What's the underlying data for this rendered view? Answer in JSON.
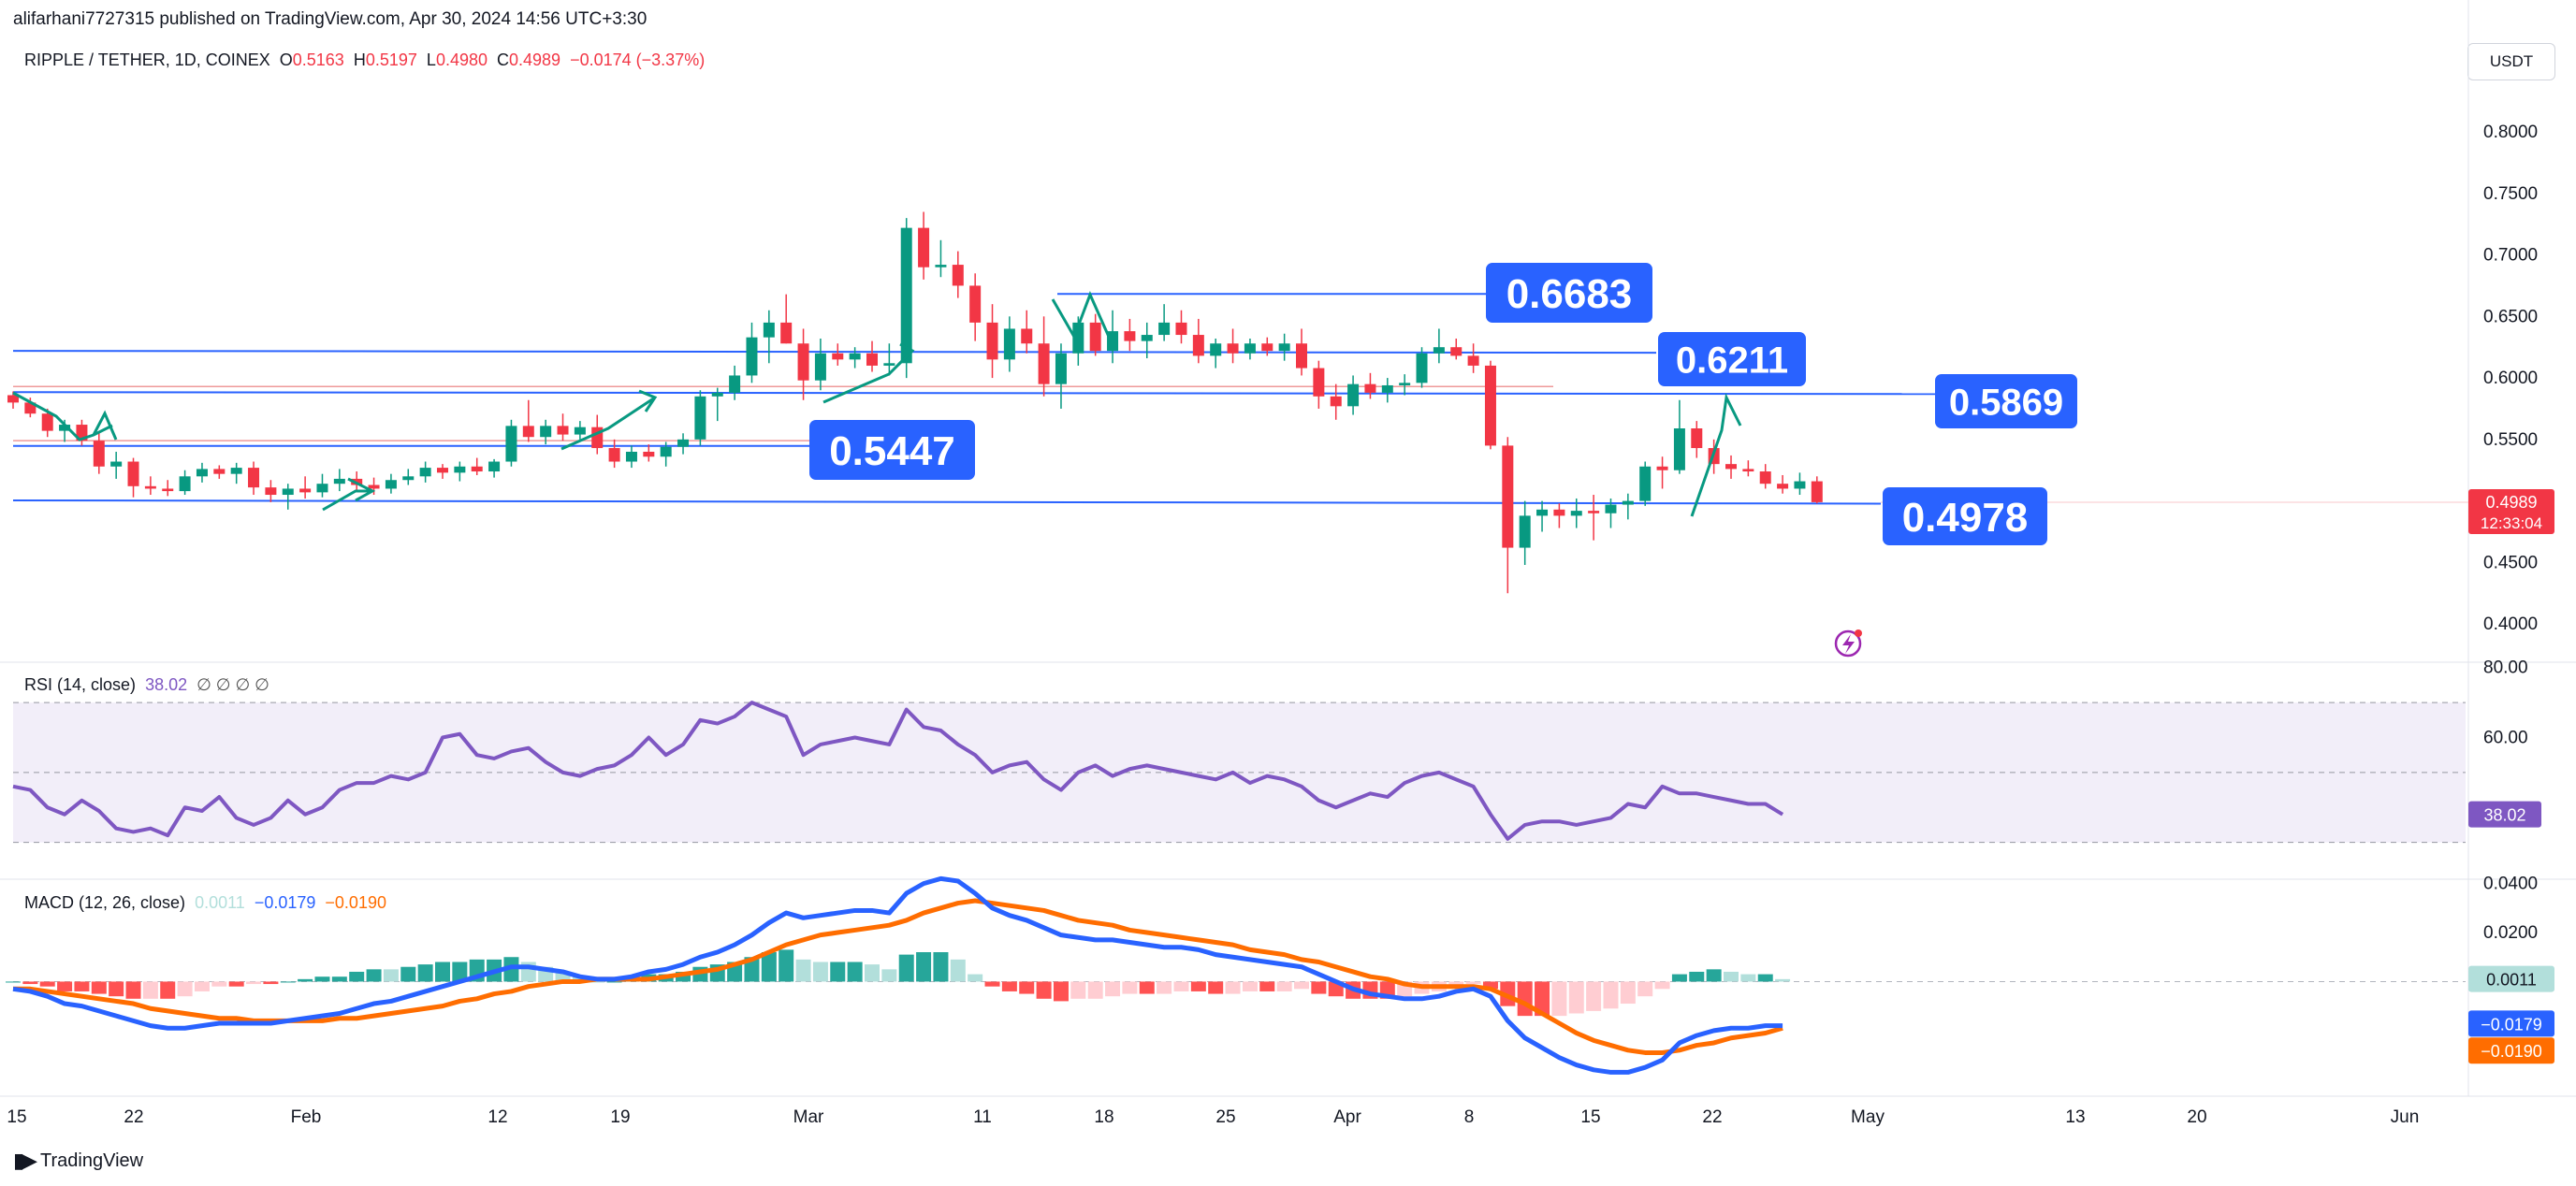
{
  "publisher": "alifarhani7727315 published on TradingView.com, Apr 30, 2024 14:56 UTC+3:30",
  "currency": "USDT",
  "footer": "TradingView",
  "legend": {
    "symbol": "RIPPLE / TETHER, 1D, COINEX",
    "o_label": "O",
    "o": "0.5163",
    "h_label": "H",
    "h": "0.5197",
    "l_label": "L",
    "l": "0.4980",
    "c_label": "C",
    "c": "0.4989",
    "change": "−0.0174 (−3.37%)"
  },
  "rsi_legend": {
    "label": "RSI (14, close)",
    "value": "38.02",
    "na": "∅ ∅ ∅ ∅"
  },
  "macd_legend": {
    "label": "MACD (12, 26, close)",
    "hist": "0.0011",
    "macd": "−0.0179",
    "signal": "−0.0190"
  },
  "colors": {
    "up": "#089981",
    "down": "#f23645",
    "line_blue": "#2962ff",
    "label_blue": "#2962ff",
    "rsi": "#7e57c2",
    "macd": "#2962ff",
    "signal": "#ff6d00"
  },
  "chart_data": {
    "type": "candlestick",
    "price_axis": {
      "ticks": [
        "0.8000",
        "0.7500",
        "0.7000",
        "0.6500",
        "0.6000",
        "0.5500",
        "0.5000",
        "0.4500",
        "0.4000"
      ],
      "range": [
        0.375,
        0.835
      ]
    },
    "x_ticks": [
      "15",
      "22",
      "Feb",
      "12",
      "19",
      "Mar",
      "11",
      "18",
      "25",
      "Apr",
      "8",
      "15",
      "22",
      "May",
      "13",
      "20",
      "Jun"
    ],
    "current_price": {
      "value": "0.4989",
      "countdown": "12:33:04"
    },
    "levels": [
      {
        "label": "0.6683",
        "value": 0.6683
      },
      {
        "label": "0.6211",
        "value": 0.6211
      },
      {
        "label": "0.5869",
        "value": 0.5869
      },
      {
        "label": "0.5447",
        "value": 0.5447
      },
      {
        "label": "0.4978",
        "value": 0.4978
      }
    ],
    "candles": [
      [
        0.586,
        0.589,
        0.575,
        0.58
      ],
      [
        0.58,
        0.584,
        0.568,
        0.571
      ],
      [
        0.571,
        0.575,
        0.552,
        0.557
      ],
      [
        0.557,
        0.566,
        0.548,
        0.562
      ],
      [
        0.562,
        0.566,
        0.545,
        0.549
      ],
      [
        0.549,
        0.556,
        0.522,
        0.528
      ],
      [
        0.528,
        0.54,
        0.518,
        0.532
      ],
      [
        0.532,
        0.535,
        0.503,
        0.512
      ],
      [
        0.512,
        0.52,
        0.505,
        0.51
      ],
      [
        0.51,
        0.517,
        0.504,
        0.508
      ],
      [
        0.508,
        0.525,
        0.505,
        0.52
      ],
      [
        0.52,
        0.531,
        0.515,
        0.526
      ],
      [
        0.526,
        0.529,
        0.518,
        0.522
      ],
      [
        0.522,
        0.531,
        0.514,
        0.527
      ],
      [
        0.527,
        0.532,
        0.505,
        0.511
      ],
      [
        0.511,
        0.517,
        0.499,
        0.505
      ],
      [
        0.505,
        0.514,
        0.493,
        0.51
      ],
      [
        0.51,
        0.52,
        0.502,
        0.507
      ],
      [
        0.507,
        0.522,
        0.503,
        0.514
      ],
      [
        0.514,
        0.526,
        0.508,
        0.518
      ],
      [
        0.518,
        0.524,
        0.509,
        0.513
      ],
      [
        0.513,
        0.519,
        0.505,
        0.51
      ],
      [
        0.51,
        0.522,
        0.506,
        0.517
      ],
      [
        0.517,
        0.526,
        0.513,
        0.52
      ],
      [
        0.52,
        0.532,
        0.515,
        0.527
      ],
      [
        0.527,
        0.53,
        0.518,
        0.523
      ],
      [
        0.523,
        0.532,
        0.516,
        0.528
      ],
      [
        0.528,
        0.535,
        0.521,
        0.524
      ],
      [
        0.524,
        0.534,
        0.519,
        0.532
      ],
      [
        0.532,
        0.566,
        0.528,
        0.561
      ],
      [
        0.561,
        0.582,
        0.548,
        0.552
      ],
      [
        0.552,
        0.566,
        0.546,
        0.561
      ],
      [
        0.561,
        0.571,
        0.549,
        0.554
      ],
      [
        0.554,
        0.565,
        0.55,
        0.56
      ],
      [
        0.56,
        0.57,
        0.538,
        0.543
      ],
      [
        0.543,
        0.55,
        0.527,
        0.532
      ],
      [
        0.532,
        0.545,
        0.527,
        0.54
      ],
      [
        0.54,
        0.546,
        0.532,
        0.536
      ],
      [
        0.536,
        0.548,
        0.528,
        0.544
      ],
      [
        0.544,
        0.555,
        0.538,
        0.55
      ],
      [
        0.55,
        0.59,
        0.545,
        0.585
      ],
      [
        0.585,
        0.592,
        0.565,
        0.588
      ],
      [
        0.588,
        0.61,
        0.582,
        0.602
      ],
      [
        0.602,
        0.645,
        0.596,
        0.633
      ],
      [
        0.633,
        0.655,
        0.612,
        0.645
      ],
      [
        0.645,
        0.668,
        0.628,
        0.628
      ],
      [
        0.628,
        0.64,
        0.582,
        0.598
      ],
      [
        0.598,
        0.632,
        0.59,
        0.62
      ],
      [
        0.62,
        0.628,
        0.61,
        0.615
      ],
      [
        0.615,
        0.625,
        0.608,
        0.62
      ],
      [
        0.62,
        0.63,
        0.605,
        0.61
      ],
      [
        0.61,
        0.628,
        0.602,
        0.612
      ],
      [
        0.612,
        0.73,
        0.6,
        0.722
      ],
      [
        0.722,
        0.735,
        0.68,
        0.69
      ],
      [
        0.69,
        0.712,
        0.682,
        0.692
      ],
      [
        0.692,
        0.703,
        0.665,
        0.675
      ],
      [
        0.675,
        0.685,
        0.63,
        0.645
      ],
      [
        0.645,
        0.66,
        0.6,
        0.615
      ],
      [
        0.615,
        0.65,
        0.605,
        0.64
      ],
      [
        0.64,
        0.655,
        0.62,
        0.628
      ],
      [
        0.628,
        0.65,
        0.585,
        0.595
      ],
      [
        0.595,
        0.628,
        0.575,
        0.62
      ],
      [
        0.62,
        0.65,
        0.61,
        0.645
      ],
      [
        0.645,
        0.652,
        0.618,
        0.622
      ],
      [
        0.622,
        0.655,
        0.612,
        0.638
      ],
      [
        0.638,
        0.648,
        0.622,
        0.63
      ],
      [
        0.63,
        0.645,
        0.616,
        0.635
      ],
      [
        0.635,
        0.66,
        0.63,
        0.645
      ],
      [
        0.645,
        0.655,
        0.628,
        0.635
      ],
      [
        0.635,
        0.648,
        0.612,
        0.618
      ],
      [
        0.618,
        0.632,
        0.608,
        0.628
      ],
      [
        0.628,
        0.64,
        0.612,
        0.62
      ],
      [
        0.62,
        0.632,
        0.615,
        0.628
      ],
      [
        0.628,
        0.633,
        0.618,
        0.622
      ],
      [
        0.622,
        0.636,
        0.614,
        0.628
      ],
      [
        0.628,
        0.64,
        0.602,
        0.608
      ],
      [
        0.608,
        0.614,
        0.575,
        0.585
      ],
      [
        0.585,
        0.595,
        0.566,
        0.577
      ],
      [
        0.577,
        0.602,
        0.57,
        0.595
      ],
      [
        0.595,
        0.604,
        0.583,
        0.588
      ],
      [
        0.588,
        0.6,
        0.58,
        0.594
      ],
      [
        0.594,
        0.603,
        0.586,
        0.596
      ],
      [
        0.596,
        0.625,
        0.592,
        0.62
      ],
      [
        0.62,
        0.64,
        0.612,
        0.625
      ],
      [
        0.625,
        0.632,
        0.615,
        0.618
      ],
      [
        0.618,
        0.628,
        0.604,
        0.61
      ],
      [
        0.61,
        0.614,
        0.542,
        0.545
      ],
      [
        0.545,
        0.552,
        0.425,
        0.462
      ],
      [
        0.462,
        0.5,
        0.448,
        0.488
      ],
      [
        0.488,
        0.5,
        0.475,
        0.493
      ],
      [
        0.493,
        0.498,
        0.478,
        0.488
      ],
      [
        0.488,
        0.502,
        0.478,
        0.492
      ],
      [
        0.492,
        0.505,
        0.468,
        0.49
      ],
      [
        0.49,
        0.502,
        0.478,
        0.497
      ],
      [
        0.497,
        0.506,
        0.485,
        0.5
      ],
      [
        0.5,
        0.532,
        0.496,
        0.528
      ],
      [
        0.528,
        0.536,
        0.51,
        0.525
      ],
      [
        0.525,
        0.582,
        0.522,
        0.559
      ],
      [
        0.559,
        0.565,
        0.535,
        0.543
      ],
      [
        0.543,
        0.55,
        0.522,
        0.53
      ],
      [
        0.53,
        0.537,
        0.518,
        0.526
      ],
      [
        0.526,
        0.533,
        0.52,
        0.524
      ],
      [
        0.524,
        0.53,
        0.51,
        0.514
      ],
      [
        0.514,
        0.521,
        0.506,
        0.51
      ],
      [
        0.51,
        0.523,
        0.505,
        0.516
      ],
      [
        0.516,
        0.52,
        0.498,
        0.499
      ]
    ],
    "rsi": {
      "ticks": [
        "80.00",
        "60.00",
        "38.02"
      ],
      "band": [
        30,
        70
      ],
      "values": [
        46,
        45,
        40,
        38,
        42,
        39,
        34,
        33,
        34,
        32,
        40,
        39,
        43,
        37,
        35,
        37,
        42,
        38,
        40,
        45,
        47,
        47,
        49,
        48,
        50,
        60,
        61,
        55,
        54,
        56,
        57,
        53,
        50,
        49,
        51,
        52,
        55,
        60,
        55,
        58,
        65,
        64,
        66,
        70,
        68,
        66,
        55,
        58,
        59,
        60,
        59,
        58,
        68,
        63,
        62,
        58,
        55,
        50,
        52,
        53,
        48,
        45,
        50,
        52,
        49,
        51,
        52,
        51,
        50,
        49,
        48,
        50,
        47,
        49,
        48,
        46,
        42,
        40,
        42,
        44,
        43,
        47,
        49,
        50,
        48,
        46,
        38,
        31,
        35,
        36,
        36,
        35,
        36,
        37,
        41,
        40,
        46,
        44,
        44,
        43,
        42,
        41,
        41,
        38
      ]
    },
    "macd": {
      "ticks": [
        "0.0400",
        "0.0200",
        "0.0011",
        "−0.0179",
        "−0.0190"
      ],
      "macd": [
        -0.003,
        -0.004,
        -0.006,
        -0.009,
        -0.01,
        -0.012,
        -0.014,
        -0.016,
        -0.018,
        -0.019,
        -0.019,
        -0.018,
        -0.017,
        -0.017,
        -0.017,
        -0.017,
        -0.016,
        -0.015,
        -0.014,
        -0.013,
        -0.011,
        -0.009,
        -0.008,
        -0.006,
        -0.004,
        -0.002,
        0.0,
        0.002,
        0.004,
        0.006,
        0.006,
        0.005,
        0.004,
        0.002,
        0.001,
        0.001,
        0.002,
        0.004,
        0.005,
        0.007,
        0.01,
        0.012,
        0.015,
        0.019,
        0.024,
        0.028,
        0.026,
        0.027,
        0.028,
        0.029,
        0.029,
        0.028,
        0.036,
        0.04,
        0.042,
        0.041,
        0.036,
        0.03,
        0.027,
        0.025,
        0.022,
        0.019,
        0.018,
        0.017,
        0.017,
        0.016,
        0.015,
        0.014,
        0.014,
        0.013,
        0.011,
        0.01,
        0.009,
        0.008,
        0.007,
        0.006,
        0.003,
        0.0,
        -0.003,
        -0.005,
        -0.006,
        -0.007,
        -0.007,
        -0.006,
        -0.004,
        -0.003,
        -0.006,
        -0.016,
        -0.023,
        -0.027,
        -0.031,
        -0.034,
        -0.036,
        -0.037,
        -0.037,
        -0.035,
        -0.032,
        -0.025,
        -0.022,
        -0.02,
        -0.019,
        -0.019,
        -0.018,
        -0.018
      ],
      "signal": [
        -0.003,
        -0.003,
        -0.004,
        -0.005,
        -0.006,
        -0.007,
        -0.008,
        -0.009,
        -0.011,
        -0.012,
        -0.013,
        -0.014,
        -0.015,
        -0.015,
        -0.016,
        -0.016,
        -0.016,
        -0.016,
        -0.016,
        -0.015,
        -0.015,
        -0.014,
        -0.013,
        -0.012,
        -0.011,
        -0.01,
        -0.008,
        -0.007,
        -0.005,
        -0.004,
        -0.002,
        -0.001,
        0.0,
        0.0,
        0.001,
        0.001,
        0.001,
        0.001,
        0.002,
        0.003,
        0.004,
        0.005,
        0.007,
        0.009,
        0.012,
        0.015,
        0.017,
        0.019,
        0.02,
        0.021,
        0.022,
        0.023,
        0.025,
        0.028,
        0.03,
        0.032,
        0.033,
        0.032,
        0.031,
        0.03,
        0.029,
        0.027,
        0.025,
        0.024,
        0.023,
        0.021,
        0.02,
        0.019,
        0.018,
        0.017,
        0.016,
        0.015,
        0.013,
        0.012,
        0.011,
        0.009,
        0.008,
        0.006,
        0.004,
        0.002,
        0.001,
        -0.001,
        -0.002,
        -0.002,
        -0.002,
        -0.002,
        -0.003,
        -0.006,
        -0.009,
        -0.013,
        -0.017,
        -0.021,
        -0.024,
        -0.026,
        -0.028,
        -0.029,
        -0.029,
        -0.028,
        -0.026,
        -0.025,
        -0.023,
        -0.022,
        -0.021,
        -0.019
      ]
    }
  }
}
